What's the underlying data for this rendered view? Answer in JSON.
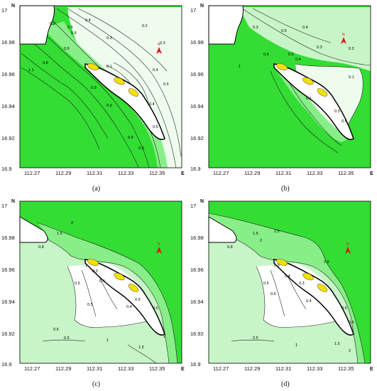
{
  "axes": {
    "y_axis_letter": "N",
    "x_axis_letter": "E",
    "y_ticks": [
      "17",
      "16.98",
      "16.96",
      "16.94",
      "16.92",
      "16.9"
    ],
    "x_ticks": [
      "112.27",
      "112.29",
      "112.31",
      "112.33",
      "112.35"
    ]
  },
  "north_arrow_letter": "N",
  "colors": {
    "deep_green": "#33dd33",
    "mid_green": "#88ee88",
    "light_green": "#c8f5c8",
    "pale": "#eefcee",
    "land": "#ffffff",
    "reef": "#f2e000",
    "arrow": "#e01010"
  },
  "panels": [
    {
      "caption": "(a)",
      "contour_labels": [
        "0.3",
        "0.5",
        "0.6",
        "0.4",
        "0.3",
        "0.2",
        "0.3",
        "0.4",
        "0.5",
        "0.1",
        "0.4",
        "0.8",
        "1.1",
        "0.9",
        "0.9",
        "0.3",
        "0.5",
        "0.6",
        "0.9"
      ]
    },
    {
      "caption": "(b)",
      "contour_labels": [
        "0.3",
        "0.5",
        "0.4",
        "0.3",
        "0.2",
        "0.1",
        "0.4",
        "0.5",
        "0.6",
        "1",
        "0.1",
        "0.3",
        "0.5"
      ]
    },
    {
      "caption": "(c)",
      "contour_labels": [
        "2",
        "1.5",
        "1",
        "0.3",
        "0.4",
        "0.5",
        "0.5",
        "0.6",
        "0.4",
        "0.5",
        "0.6",
        "0.5",
        "1",
        "1.5",
        "2",
        "0.8"
      ]
    },
    {
      "caption": "(d)",
      "contour_labels": [
        "2.5",
        "2.5",
        "1.5",
        "2",
        "0.3",
        "0.4",
        "0.5",
        "0.6",
        "0.3",
        "0.4",
        "0.5",
        "0.5",
        "1",
        "1.5",
        "2",
        "0.5",
        "0.8"
      ]
    }
  ]
}
